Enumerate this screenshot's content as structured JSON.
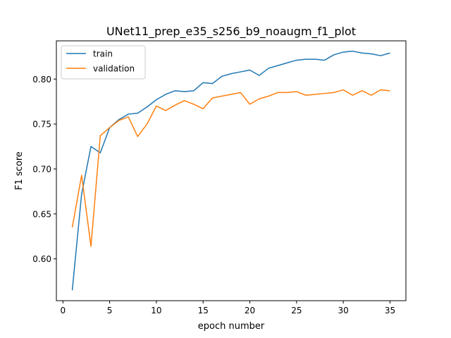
{
  "chart_data": {
    "type": "line",
    "title": "UNet11_prep_e35_s256_b9_noaugm_f1_plot",
    "xlabel": "epoch number",
    "ylabel": "F1 score",
    "xlim": [
      -0.7,
      36.7
    ],
    "ylim": [
      0.5535,
      0.8425
    ],
    "xticks": [
      0,
      5,
      10,
      15,
      20,
      25,
      30,
      35
    ],
    "yticks": [
      0.6,
      0.65,
      0.7,
      0.75,
      0.8
    ],
    "ytick_labels": [
      "0.60",
      "0.65",
      "0.70",
      "0.75",
      "0.80"
    ],
    "grid": false,
    "legend": "top-left",
    "x": [
      1,
      2,
      3,
      4,
      5,
      6,
      7,
      8,
      9,
      10,
      11,
      12,
      13,
      14,
      15,
      16,
      17,
      18,
      19,
      20,
      21,
      22,
      23,
      24,
      25,
      26,
      27,
      28,
      29,
      30,
      31,
      32,
      33,
      34,
      35
    ],
    "series": [
      {
        "name": "train",
        "color": "#1f77b4",
        "values": [
          0.565,
          0.672,
          0.725,
          0.718,
          0.746,
          0.755,
          0.761,
          0.762,
          0.769,
          0.777,
          0.783,
          0.787,
          0.786,
          0.787,
          0.796,
          0.795,
          0.803,
          0.806,
          0.808,
          0.81,
          0.804,
          0.812,
          0.815,
          0.818,
          0.821,
          0.822,
          0.822,
          0.821,
          0.827,
          0.83,
          0.831,
          0.829,
          0.828,
          0.826,
          0.829
        ]
      },
      {
        "name": "validation",
        "color": "#ff7f0e",
        "values": [
          0.635,
          0.693,
          0.614,
          0.737,
          0.746,
          0.754,
          0.758,
          0.736,
          0.75,
          0.77,
          0.765,
          0.771,
          0.776,
          0.772,
          0.767,
          0.779,
          0.781,
          0.783,
          0.785,
          0.772,
          0.778,
          0.781,
          0.785,
          0.785,
          0.786,
          0.782,
          0.783,
          0.784,
          0.785,
          0.788,
          0.782,
          0.787,
          0.782,
          0.788,
          0.787
        ]
      }
    ]
  }
}
